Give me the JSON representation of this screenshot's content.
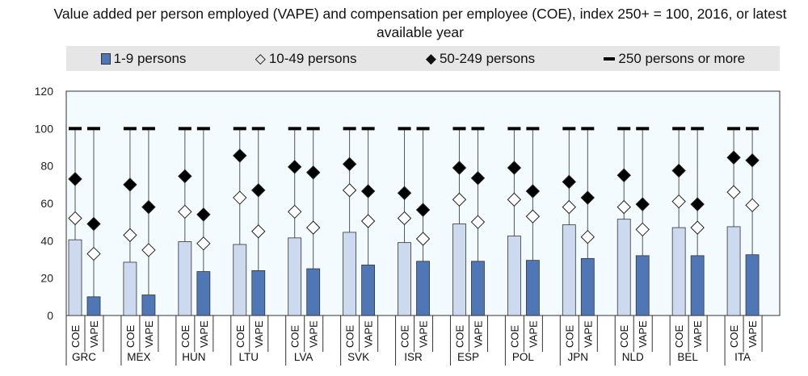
{
  "chart_data": {
    "type": "bar",
    "title": "Value added per person employed (VAPE) and compensation per employee (COE), index 250+ = 100, 2016, or latest available year",
    "ylim": [
      0,
      120
    ],
    "yticks": [
      0,
      20,
      40,
      60,
      80,
      100,
      120
    ],
    "grid": false,
    "legend_position": "top",
    "legend": [
      {
        "label": "1-9 persons",
        "marker": "bar"
      },
      {
        "label": "10-49 persons",
        "marker": "open-diamond"
      },
      {
        "label": "50-249 persons",
        "marker": "filled-diamond"
      },
      {
        "label": "250 persons or more",
        "marker": "dash"
      }
    ],
    "subcategories": [
      "COE",
      "VAPE"
    ],
    "categories": [
      "GRC",
      "MEX",
      "HUN",
      "LTU",
      "LVA",
      "SVK",
      "ISR",
      "ESP",
      "POL",
      "JPN",
      "NLD",
      "BEL",
      "ITA"
    ],
    "series": [
      {
        "name": "1-9 persons",
        "COE": [
          40.5,
          28.5,
          39.5,
          38,
          41.5,
          44.5,
          39,
          49,
          42.5,
          48.5,
          51.5,
          47,
          47.5
        ],
        "VAPE": [
          10,
          11,
          23.5,
          24,
          25,
          27,
          29,
          29,
          29.5,
          30.5,
          32,
          32,
          32.5
        ]
      },
      {
        "name": "10-49 persons",
        "COE": [
          52,
          43,
          55.5,
          63,
          55.5,
          67,
          52,
          62,
          62,
          58,
          58,
          61,
          66
        ],
        "VAPE": [
          33,
          35,
          38.5,
          45,
          47,
          50.5,
          41,
          50,
          53,
          42,
          46,
          47,
          59
        ]
      },
      {
        "name": "50-249 persons",
        "COE": [
          73,
          70,
          74.5,
          85.5,
          79.5,
          81,
          65.5,
          79,
          79,
          71.5,
          75,
          77.5,
          84.5
        ],
        "VAPE": [
          49,
          58,
          54,
          67,
          76.5,
          66.5,
          56.5,
          73.5,
          66.5,
          63,
          59.5,
          59.5,
          83
        ]
      },
      {
        "name": "250 persons or more",
        "COE": [
          100,
          100,
          100,
          100,
          100,
          100,
          100,
          100,
          100,
          100,
          100,
          100,
          100
        ],
        "VAPE": [
          100,
          100,
          100,
          100,
          100,
          100,
          100,
          100,
          100,
          100,
          100,
          100,
          100
        ]
      }
    ],
    "colors": {
      "coe_bar": "#cdd9ef",
      "vape_bar": "#4f77b6",
      "plot_bg": "#f3fbff"
    }
  }
}
